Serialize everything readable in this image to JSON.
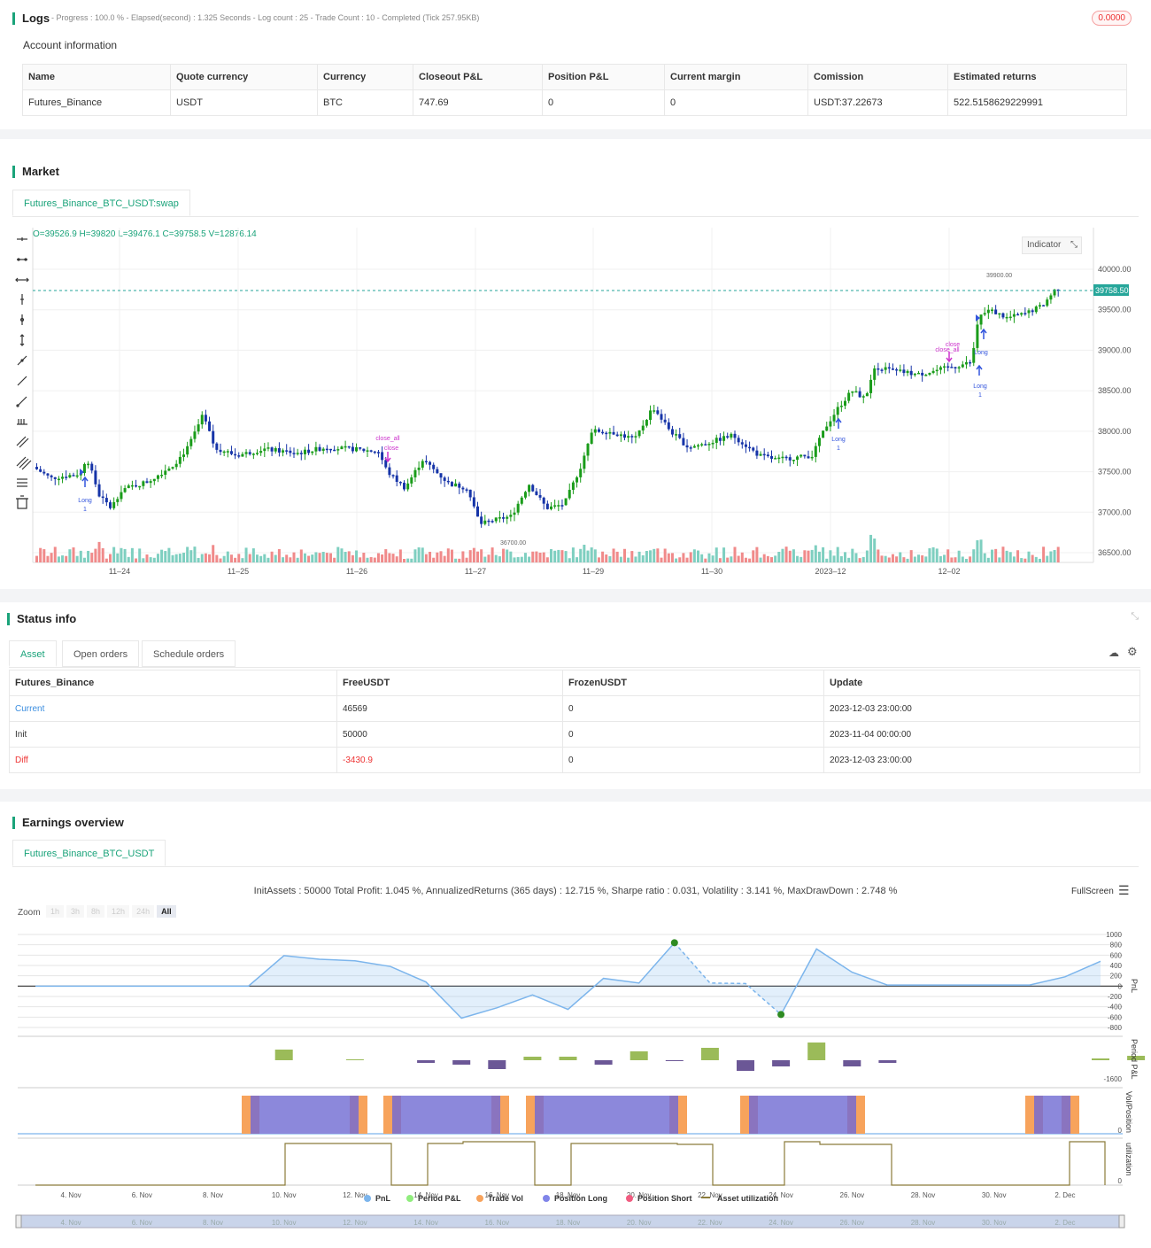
{
  "logs": {
    "title": "Logs",
    "progress": "- Progress : 100.0 % - Elapsed(second) : 1.325  Seconds - Log count : 25 - Trade Count : 10 - Completed (Tick 257.95KB)",
    "badge": "0.0000"
  },
  "account": {
    "title": "Account information",
    "headers": [
      "Name",
      "Quote currency",
      "Currency",
      "Closeout P&L",
      "Position P&L",
      "Current margin",
      "Comission",
      "Estimated returns"
    ],
    "row": [
      "Futures_Binance",
      "USDT",
      "BTC",
      "747.69",
      "0",
      "0",
      "USDT:37.22673",
      "522.5158629229991"
    ]
  },
  "market": {
    "title": "Market",
    "tab": "Futures_Binance_BTC_USDT:swap",
    "ohlc": "O=39526.9 H=39820 L=39476.1 C=39758.5 V=12876.14",
    "indicator_button": "Indicator",
    "last_price": "39758.50",
    "high_label": "39900.00",
    "low_label": "36700.00",
    "y_ticks": [
      "40000.00",
      "39500.00",
      "39000.00",
      "38500.00",
      "38000.00",
      "37500.00",
      "37000.00",
      "36500.00"
    ],
    "x_ticks": [
      "11–24",
      "11–25",
      "11–26",
      "11–27",
      "11–29",
      "11–30",
      "2023–12",
      "12–02"
    ],
    "signals": [
      "Long",
      "1",
      "close_all",
      "close",
      "Long",
      "1",
      "Long",
      "1",
      "close",
      "close_all",
      "Long",
      "1",
      "Long"
    ],
    "colors": {
      "up": "#1a9c1a",
      "down": "#1634a8",
      "vol_up": "#7ecfc0",
      "vol_down": "#f08a8a",
      "signal": "#cc33cc",
      "long": "#3355dd"
    }
  },
  "status": {
    "title": "Status info",
    "tabs": [
      "Asset",
      "Open orders",
      "Schedule orders"
    ],
    "headers": [
      "Futures_Binance",
      "FreeUSDT",
      "FrozenUSDT",
      "Update"
    ],
    "rows": [
      [
        "Current",
        "46569",
        "0",
        "2023-12-03 23:00:00"
      ],
      [
        "Init",
        "50000",
        "0",
        "2023-11-04 00:00:00"
      ],
      [
        "Diff",
        "-3430.9",
        "0",
        "2023-12-03 23:00:00"
      ]
    ]
  },
  "earnings": {
    "title": "Earnings overview",
    "tab": "Futures_Binance_BTC_USDT",
    "summary": "InitAssets : 50000 Total Profit: 1.045 %, AnnualizedReturns (365 days) : 12.715 %, Sharpe ratio : 0.031, Volatility : 3.141 %, MaxDrawDown : 2.748 %",
    "fullscreen": "FullScreen",
    "zoom_label": "Zoom",
    "zoom_options": [
      "1h",
      "3h",
      "8h",
      "12h",
      "24h",
      "All"
    ],
    "pnl_ticks": [
      "1000",
      "800",
      "600",
      "400",
      "200",
      "0",
      "-200",
      "-400",
      "-600",
      "-800"
    ],
    "period_tick": "-1600",
    "axis_labels": [
      "PnL",
      "Period P&L",
      "Vol/Position",
      "utilization"
    ],
    "zero_labels": [
      "0",
      "0"
    ],
    "x_ticks": [
      "4. Nov",
      "6. Nov",
      "8. Nov",
      "10. Nov",
      "12. Nov",
      "14. Nov",
      "16. Nov",
      "18. Nov",
      "20. Nov",
      "22. Nov",
      "24. Nov",
      "26. Nov",
      "28. Nov",
      "30. Nov",
      "2. Dec"
    ],
    "legend": [
      "PnL",
      "Period P&L",
      "Trade Vol",
      "Position Long",
      "Position Short",
      "Asset utilization"
    ],
    "legend_colors": [
      "#7cb5ec",
      "#90ed7d",
      "#f7a35c",
      "#8085e9",
      "#f15c80",
      "#8b7b3a"
    ]
  },
  "chart_data": {
    "type": "line",
    "title": "",
    "series": [
      {
        "name": "PnL",
        "x": [
          "3. Nov",
          "5. Nov",
          "7. Nov",
          "9. Nov",
          "10. Nov",
          "11. Nov",
          "12. Nov",
          "13. Nov",
          "14. Nov",
          "15. Nov",
          "16. Nov",
          "17. Nov",
          "18. Nov",
          "19. Nov",
          "20. Nov",
          "21. Nov",
          "22. Nov",
          "23. Nov",
          "24. Nov",
          "25. Nov",
          "26. Nov",
          "27. Nov",
          "29. Nov",
          "1. Dec",
          "2. Dec",
          "3. Dec"
        ],
        "values": [
          0,
          0,
          0,
          0,
          590,
          520,
          490,
          380,
          80,
          -620,
          -420,
          -170,
          -450,
          150,
          60,
          840,
          60,
          50,
          -550,
          720,
          270,
          20,
          20,
          20,
          180,
          480
        ]
      }
    ],
    "ylim": [
      -800,
      1000
    ]
  }
}
